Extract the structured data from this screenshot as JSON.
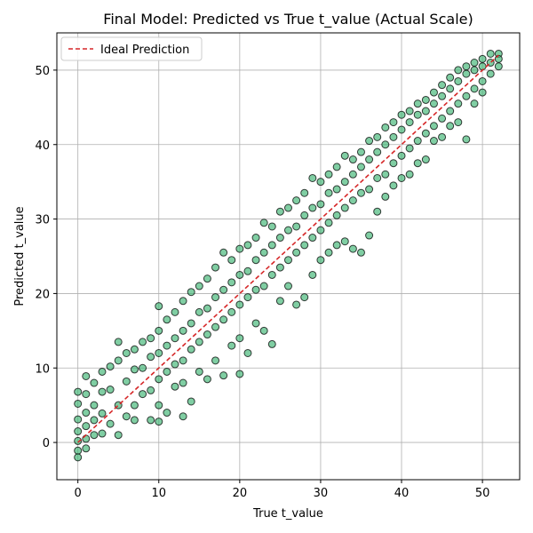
{
  "chart_data": {
    "type": "scatter",
    "title": "Final Model: Predicted vs True t_value (Actual Scale)",
    "xlabel": "True t_value",
    "ylabel": "Predicted t_value",
    "xlim": [
      -2.6,
      54.6
    ],
    "ylim": [
      -5,
      55
    ],
    "xticks": [
      0,
      10,
      20,
      30,
      40,
      50
    ],
    "yticks": [
      0,
      10,
      20,
      30,
      40,
      50
    ],
    "grid": true,
    "legend": {
      "placement": "top-left",
      "entries": [
        "Ideal Prediction"
      ]
    },
    "ideal_line": {
      "name": "Ideal Prediction",
      "x": [
        0,
        52
      ],
      "y": [
        0,
        52
      ],
      "style": "dashed",
      "color": "#d62728"
    },
    "scatter_color": "#3cb371",
    "scatter_edge": "#000000",
    "series": [
      {
        "values_description": "dense cloud around y = x",
        "points": [
          [
            0,
            6.8
          ],
          [
            0,
            5.2
          ],
          [
            0,
            3.1
          ],
          [
            0,
            1.5
          ],
          [
            0,
            0.2
          ],
          [
            0,
            -1.1
          ],
          [
            0,
            -2.0
          ],
          [
            1,
            8.9
          ],
          [
            1,
            6.5
          ],
          [
            1,
            4.0
          ],
          [
            1,
            2.2
          ],
          [
            1,
            0.5
          ],
          [
            1,
            -0.8
          ],
          [
            2,
            8.0
          ],
          [
            2,
            5.0
          ],
          [
            2,
            3.0
          ],
          [
            2,
            1.0
          ],
          [
            3,
            9.5
          ],
          [
            3,
            6.8
          ],
          [
            3,
            3.9
          ],
          [
            3,
            1.2
          ],
          [
            4,
            10.2
          ],
          [
            4,
            7.1
          ],
          [
            4,
            2.5
          ],
          [
            5,
            11.0
          ],
          [
            5,
            13.5
          ],
          [
            5,
            5.0
          ],
          [
            5,
            1.0
          ],
          [
            6,
            12.0
          ],
          [
            6,
            8.2
          ],
          [
            6,
            3.5
          ],
          [
            7,
            12.5
          ],
          [
            7,
            9.8
          ],
          [
            7,
            5.0
          ],
          [
            7,
            3.0
          ],
          [
            8,
            13.5
          ],
          [
            8,
            10.0
          ],
          [
            8,
            6.5
          ],
          [
            9,
            14.0
          ],
          [
            9,
            11.5
          ],
          [
            9,
            7.0
          ],
          [
            9,
            3.0
          ],
          [
            10,
            18.3
          ],
          [
            10,
            15.0
          ],
          [
            10,
            12.0
          ],
          [
            10,
            8.5
          ],
          [
            10,
            5.0
          ],
          [
            10,
            2.8
          ],
          [
            11,
            16.5
          ],
          [
            11,
            13.0
          ],
          [
            11,
            9.5
          ],
          [
            11,
            4.0
          ],
          [
            12,
            17.5
          ],
          [
            12,
            14.0
          ],
          [
            12,
            10.5
          ],
          [
            12,
            7.5
          ],
          [
            13,
            3.5
          ],
          [
            13,
            19.0
          ],
          [
            13,
            15.0
          ],
          [
            13,
            11.0
          ],
          [
            13,
            8.0
          ],
          [
            14,
            20.2
          ],
          [
            14,
            16.0
          ],
          [
            14,
            12.5
          ],
          [
            14,
            5.5
          ],
          [
            15,
            21.0
          ],
          [
            15,
            17.5
          ],
          [
            15,
            13.5
          ],
          [
            15,
            9.5
          ],
          [
            16,
            22.0
          ],
          [
            16,
            18.0
          ],
          [
            16,
            14.5
          ],
          [
            16,
            8.5
          ],
          [
            17,
            23.5
          ],
          [
            17,
            19.5
          ],
          [
            17,
            15.5
          ],
          [
            17,
            11.0
          ],
          [
            18,
            25.5
          ],
          [
            18,
            20.5
          ],
          [
            18,
            16.5
          ],
          [
            18,
            9.0
          ],
          [
            19,
            24.5
          ],
          [
            19,
            21.5
          ],
          [
            19,
            17.5
          ],
          [
            19,
            13.0
          ],
          [
            20,
            26.0
          ],
          [
            20,
            22.5
          ],
          [
            20,
            18.5
          ],
          [
            20,
            14.0
          ],
          [
            20,
            9.2
          ],
          [
            21,
            26.5
          ],
          [
            21,
            23.0
          ],
          [
            21,
            19.5
          ],
          [
            21,
            12.0
          ],
          [
            22,
            27.5
          ],
          [
            22,
            24.5
          ],
          [
            22,
            20.5
          ],
          [
            22,
            16.0
          ],
          [
            23,
            29.5
          ],
          [
            23,
            25.5
          ],
          [
            23,
            21.0
          ],
          [
            23,
            15.0
          ],
          [
            24,
            29.0
          ],
          [
            24,
            26.5
          ],
          [
            24,
            22.5
          ],
          [
            24,
            13.2
          ],
          [
            25,
            31.0
          ],
          [
            25,
            27.5
          ],
          [
            25,
            23.5
          ],
          [
            25,
            19.0
          ],
          [
            26,
            31.5
          ],
          [
            26,
            28.5
          ],
          [
            26,
            24.5
          ],
          [
            26,
            21.0
          ],
          [
            27,
            32.5
          ],
          [
            27,
            29.0
          ],
          [
            27,
            25.5
          ],
          [
            27,
            18.5
          ],
          [
            28,
            33.5
          ],
          [
            28,
            30.5
          ],
          [
            28,
            26.5
          ],
          [
            28,
            19.5
          ],
          [
            29,
            35.5
          ],
          [
            29,
            31.5
          ],
          [
            29,
            27.5
          ],
          [
            29,
            22.5
          ],
          [
            30,
            35.0
          ],
          [
            30,
            32.0
          ],
          [
            30,
            28.5
          ],
          [
            30,
            24.5
          ],
          [
            31,
            36.0
          ],
          [
            31,
            33.5
          ],
          [
            31,
            29.5
          ],
          [
            31,
            25.5
          ],
          [
            32,
            37.0
          ],
          [
            32,
            34.0
          ],
          [
            32,
            30.5
          ],
          [
            32,
            26.5
          ],
          [
            33,
            38.5
          ],
          [
            33,
            35.0
          ],
          [
            33,
            31.5
          ],
          [
            33,
            27.0
          ],
          [
            34,
            38.0
          ],
          [
            34,
            36.0
          ],
          [
            34,
            32.5
          ],
          [
            34,
            26.0
          ],
          [
            35,
            39.0
          ],
          [
            35,
            37.0
          ],
          [
            35,
            33.5
          ],
          [
            35,
            25.5
          ],
          [
            36,
            40.5
          ],
          [
            36,
            38.0
          ],
          [
            36,
            34.0
          ],
          [
            36,
            27.8
          ],
          [
            37,
            41.0
          ],
          [
            37,
            39.0
          ],
          [
            37,
            35.5
          ],
          [
            37,
            31.0
          ],
          [
            38,
            42.3
          ],
          [
            38,
            40.0
          ],
          [
            38,
            36.0
          ],
          [
            38,
            33.0
          ],
          [
            39,
            43.0
          ],
          [
            39,
            41.0
          ],
          [
            39,
            37.5
          ],
          [
            39,
            34.5
          ],
          [
            40,
            44.0
          ],
          [
            40,
            42.0
          ],
          [
            40,
            38.5
          ],
          [
            40,
            35.5
          ],
          [
            41,
            44.5
          ],
          [
            41,
            43.0
          ],
          [
            41,
            39.5
          ],
          [
            41,
            36.0
          ],
          [
            42,
            45.5
          ],
          [
            42,
            44.0
          ],
          [
            42,
            40.5
          ],
          [
            42,
            37.5
          ],
          [
            43,
            46.0
          ],
          [
            43,
            44.5
          ],
          [
            43,
            41.5
          ],
          [
            43,
            38.0
          ],
          [
            44,
            47.0
          ],
          [
            44,
            45.5
          ],
          [
            44,
            42.5
          ],
          [
            44,
            40.5
          ],
          [
            45,
            48.0
          ],
          [
            45,
            46.5
          ],
          [
            45,
            43.5
          ],
          [
            45,
            41.0
          ],
          [
            46,
            49.0
          ],
          [
            46,
            47.5
          ],
          [
            46,
            44.5
          ],
          [
            46,
            42.5
          ],
          [
            47,
            50.0
          ],
          [
            47,
            48.5
          ],
          [
            47,
            45.5
          ],
          [
            47,
            43.0
          ],
          [
            48,
            50.5
          ],
          [
            48,
            49.5
          ],
          [
            48,
            46.5
          ],
          [
            48,
            40.7
          ],
          [
            49,
            51.0
          ],
          [
            49,
            50.0
          ],
          [
            49,
            47.5
          ],
          [
            49,
            45.5
          ],
          [
            50,
            51.5
          ],
          [
            50,
            50.5
          ],
          [
            50,
            48.5
          ],
          [
            50,
            47.0
          ],
          [
            51,
            52.2
          ],
          [
            51,
            51.0
          ],
          [
            51,
            49.5
          ],
          [
            52,
            52.2
          ],
          [
            52,
            51.5
          ],
          [
            52,
            50.5
          ]
        ]
      }
    ]
  }
}
